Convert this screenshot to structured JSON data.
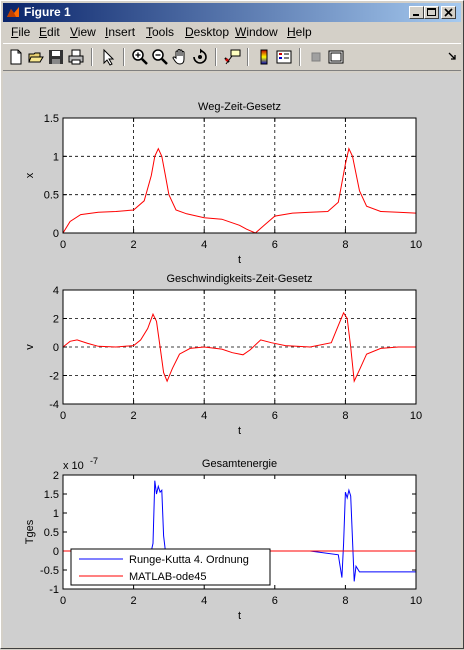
{
  "window": {
    "title": "Figure 1"
  },
  "menu": [
    "File",
    "Edit",
    "View",
    "Insert",
    "Tools",
    "Desktop",
    "Window",
    "Help"
  ],
  "menu_underline": [
    "F",
    "E",
    "V",
    "I",
    "T",
    "D",
    "W",
    "H"
  ],
  "toolbar": [
    "new-figure",
    "open-file",
    "save",
    "print",
    "edit-plot",
    "zoom-in",
    "zoom-out",
    "pan",
    "rotate-3d",
    "data-cursor",
    "colorbar",
    "legend",
    "hide-plot-tools",
    "show-plot-tools"
  ],
  "chart_data": [
    {
      "type": "line",
      "title": "Weg-Zeit-Gesetz",
      "xlabel": "t",
      "ylabel": "x",
      "xlim": [
        0,
        10
      ],
      "ylim": [
        0,
        1.5
      ],
      "xticks": [
        "0",
        "2",
        "4",
        "6",
        "8",
        "10"
      ],
      "yticks": [
        "0",
        "0.5",
        "1",
        "1.5"
      ],
      "grid": true,
      "series": [
        {
          "color": "#ff0000",
          "x": [
            0,
            0.2,
            0.5,
            1,
            1.5,
            2,
            2.3,
            2.5,
            2.6,
            2.7,
            2.8,
            2.9,
            3,
            3.2,
            3.5,
            4,
            4.5,
            5,
            5.2,
            5.45,
            5.7,
            6,
            6.5,
            7,
            7.5,
            7.8,
            8,
            8.1,
            8.2,
            8.4,
            8.6,
            9,
            9.5,
            10
          ],
          "y": [
            0,
            0.15,
            0.24,
            0.27,
            0.28,
            0.3,
            0.42,
            0.75,
            1.0,
            1.1,
            1.0,
            0.75,
            0.5,
            0.3,
            0.25,
            0.2,
            0.18,
            0.1,
            0.05,
            0,
            0.1,
            0.22,
            0.26,
            0.27,
            0.28,
            0.4,
            0.9,
            1.1,
            1.0,
            0.55,
            0.35,
            0.28,
            0.27,
            0.26
          ]
        }
      ]
    },
    {
      "type": "line",
      "title": "Geschwindigkeits-Zeit-Gesetz",
      "xlabel": "t",
      "ylabel": "v",
      "xlim": [
        0,
        10
      ],
      "ylim": [
        -4,
        4
      ],
      "xticks": [
        "0",
        "2",
        "4",
        "6",
        "8",
        "10"
      ],
      "yticks": [
        "-4",
        "-2",
        "0",
        "2",
        "4"
      ],
      "grid": true,
      "series": [
        {
          "color": "#ff0000",
          "x": [
            0,
            0.2,
            0.4,
            0.7,
            1,
            1.5,
            2,
            2.2,
            2.4,
            2.55,
            2.65,
            2.75,
            2.85,
            2.95,
            3.1,
            3.3,
            3.6,
            4,
            4.5,
            4.8,
            5.1,
            5.3,
            5.6,
            5.9,
            6.3,
            7,
            7.6,
            7.8,
            7.95,
            8.05,
            8.15,
            8.25,
            8.4,
            8.6,
            9,
            9.5,
            10
          ],
          "y": [
            0,
            0.4,
            0.5,
            0.25,
            0.05,
            0,
            0.1,
            0.5,
            1.3,
            2.3,
            1.8,
            0,
            -1.8,
            -2.4,
            -1.5,
            -0.5,
            -0.1,
            0,
            -0.15,
            -0.4,
            -0.55,
            -0.2,
            0.5,
            0.3,
            0.1,
            0,
            0.3,
            1.5,
            2.4,
            2.0,
            0,
            -2.4,
            -1.6,
            -0.5,
            -0.1,
            0,
            0
          ]
        }
      ]
    },
    {
      "type": "line",
      "title": "Gesamtenergie",
      "xlabel": "t",
      "ylabel": "Tges",
      "multiplier_base": "x 10",
      "multiplier_exp": "-7",
      "xlim": [
        0,
        10
      ],
      "ylim": [
        -1,
        2
      ],
      "xticks": [
        "0",
        "2",
        "4",
        "6",
        "8",
        "10"
      ],
      "yticks": [
        "-1",
        "-0.5",
        "0",
        "0.5",
        "1",
        "1.5",
        "2"
      ],
      "grid": false,
      "legend": {
        "position": "bottom-left",
        "entries": [
          "Runge-Kutta 4. Ordnung",
          "MATLAB-ode45"
        ]
      },
      "series": [
        {
          "name": "Runge-Kutta 4. Ordnung",
          "color": "#0000ff",
          "x": [
            0,
            2.4,
            2.5,
            2.55,
            2.6,
            2.65,
            2.7,
            2.75,
            2.8,
            2.85,
            2.9,
            3,
            3.5,
            4,
            5,
            6,
            7,
            7.8,
            7.9,
            7.95,
            8.0,
            8.05,
            8.1,
            8.15,
            8.2,
            8.25,
            8.3,
            8.4,
            8.6,
            9,
            10
          ],
          "y": [
            0,
            0,
            0,
            0.2,
            1.85,
            1.5,
            1.7,
            1.55,
            1.6,
            0.4,
            0,
            0,
            0,
            0,
            0,
            0,
            0,
            -0.1,
            -0.7,
            0.2,
            1.55,
            1.4,
            1.6,
            1.45,
            0.3,
            -0.8,
            -0.4,
            -0.55,
            -0.55,
            -0.55,
            -0.55
          ]
        },
        {
          "name": "MATLAB-ode45",
          "color": "#ff0000",
          "x": [
            0,
            10
          ],
          "y": [
            0,
            0
          ]
        }
      ]
    }
  ]
}
